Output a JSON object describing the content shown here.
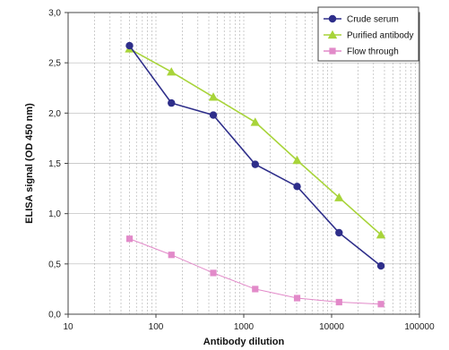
{
  "chart_data": {
    "type": "line",
    "title": "",
    "xlabel": "Antibody dilution",
    "ylabel": "ELISA signal (OD 450 nm)",
    "x_scale": "log",
    "xlim": [
      10,
      100000
    ],
    "ylim": [
      0,
      3
    ],
    "x_ticks": [
      "10",
      "100",
      "1000",
      "10000",
      "100000"
    ],
    "y_ticks": [
      "0,0",
      "0,5",
      "1,0",
      "1,5",
      "2,0",
      "2,5",
      "3,0"
    ],
    "grid": {
      "x": true,
      "y": true
    },
    "legend_position": "top-right",
    "series": [
      {
        "name": "Crude serum",
        "color": "#2e2e8a",
        "marker": "circle",
        "x": [
          50,
          150,
          450,
          1350,
          4050,
          12150,
          36450
        ],
        "y": [
          2.67,
          2.1,
          1.98,
          1.49,
          1.27,
          0.81,
          0.48
        ]
      },
      {
        "name": "Purified antibody",
        "color": "#a8d43a",
        "marker": "triangle",
        "x": [
          50,
          150,
          450,
          1350,
          4050,
          12150,
          36450
        ],
        "y": [
          2.64,
          2.41,
          2.16,
          1.91,
          1.53,
          1.16,
          0.79
        ]
      },
      {
        "name": "Flow through",
        "color": "#e28ac9",
        "marker": "square",
        "x": [
          50,
          150,
          450,
          1350,
          4050,
          12150,
          36450
        ],
        "y": [
          0.75,
          0.59,
          0.41,
          0.25,
          0.16,
          0.12,
          0.1
        ]
      }
    ]
  }
}
